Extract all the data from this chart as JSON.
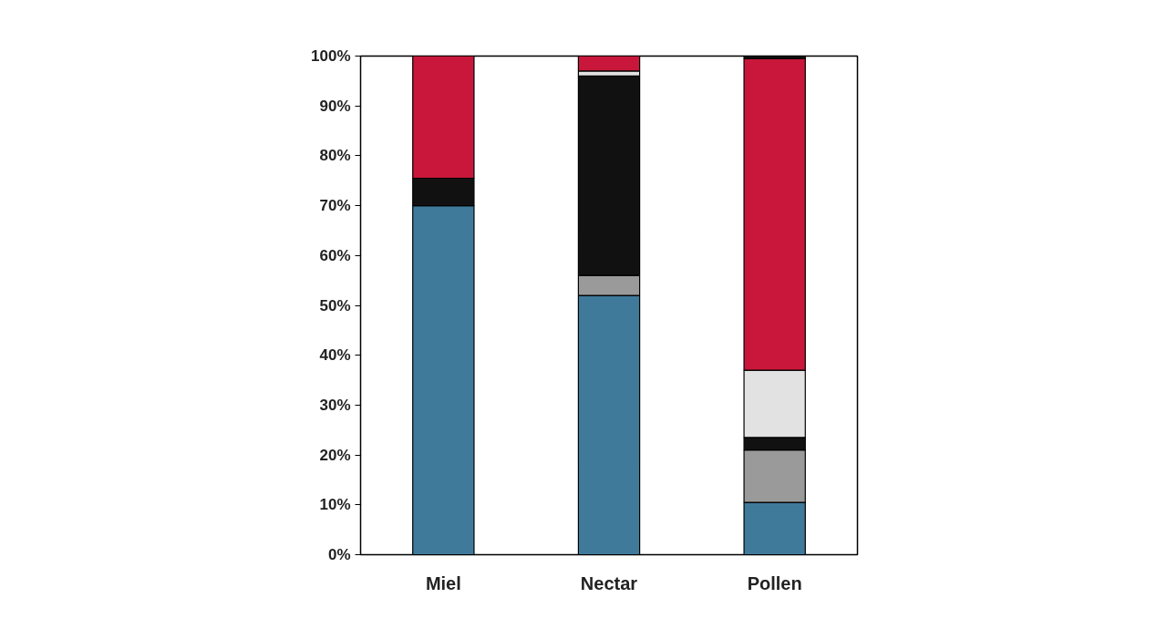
{
  "chart_data": {
    "type": "bar",
    "stacked": true,
    "categories": [
      "Miel",
      "Nectar",
      "Pollen"
    ],
    "series": [
      {
        "color": "#3f7a9b",
        "values": [
          70,
          52,
          10.5
        ]
      },
      {
        "color": "#9a9a9a",
        "values": [
          null,
          4,
          10.5
        ]
      },
      {
        "color": "#111111",
        "values": [
          5.5,
          40,
          2.5
        ]
      },
      {
        "color": "#e2e2e2",
        "values": [
          null,
          1,
          13.5
        ]
      },
      {
        "color": "#c8173a",
        "values": [
          24.5,
          3,
          62.5
        ]
      },
      {
        "color": "#111111",
        "values": [
          null,
          null,
          0.5
        ]
      }
    ],
    "ylim": [
      0,
      100
    ],
    "yticks": [
      {
        "value": 0,
        "label": "0%"
      },
      {
        "value": 10,
        "label": "10%"
      },
      {
        "value": 20,
        "label": "20%"
      },
      {
        "value": 30,
        "label": "30%"
      },
      {
        "value": 40,
        "label": "40%"
      },
      {
        "value": 50,
        "label": "50%"
      },
      {
        "value": 60,
        "label": "60%"
      },
      {
        "value": 70,
        "label": "70%"
      },
      {
        "value": 80,
        "label": "80%"
      },
      {
        "value": 90,
        "label": "90%"
      },
      {
        "value": 100,
        "label": "100%"
      }
    ],
    "grid": false
  }
}
